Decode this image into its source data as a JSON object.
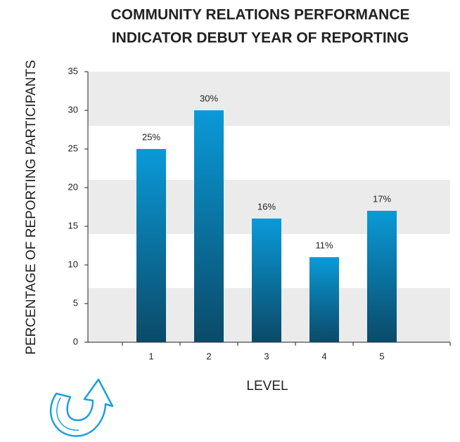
{
  "chart_data": {
    "type": "bar",
    "title": [
      "COMMUNITY RELATIONS PERFORMANCE",
      "INDICATOR DEBUT YEAR OF REPORTING"
    ],
    "x_label": "LEVEL",
    "y_label": "PERCENTAGE OF REPORTING PARTICIPANTS",
    "categories": [
      "1",
      "2",
      "3",
      "4",
      "5"
    ],
    "values": [
      25,
      30,
      16,
      11,
      17
    ],
    "value_labels": [
      "25%",
      "30%",
      "16%",
      "11%",
      "17%"
    ],
    "color": "#0a8fc8",
    "ylim": [
      0,
      35
    ],
    "yticks": [
      0,
      5,
      10,
      15,
      20,
      25,
      30,
      35
    ]
  }
}
